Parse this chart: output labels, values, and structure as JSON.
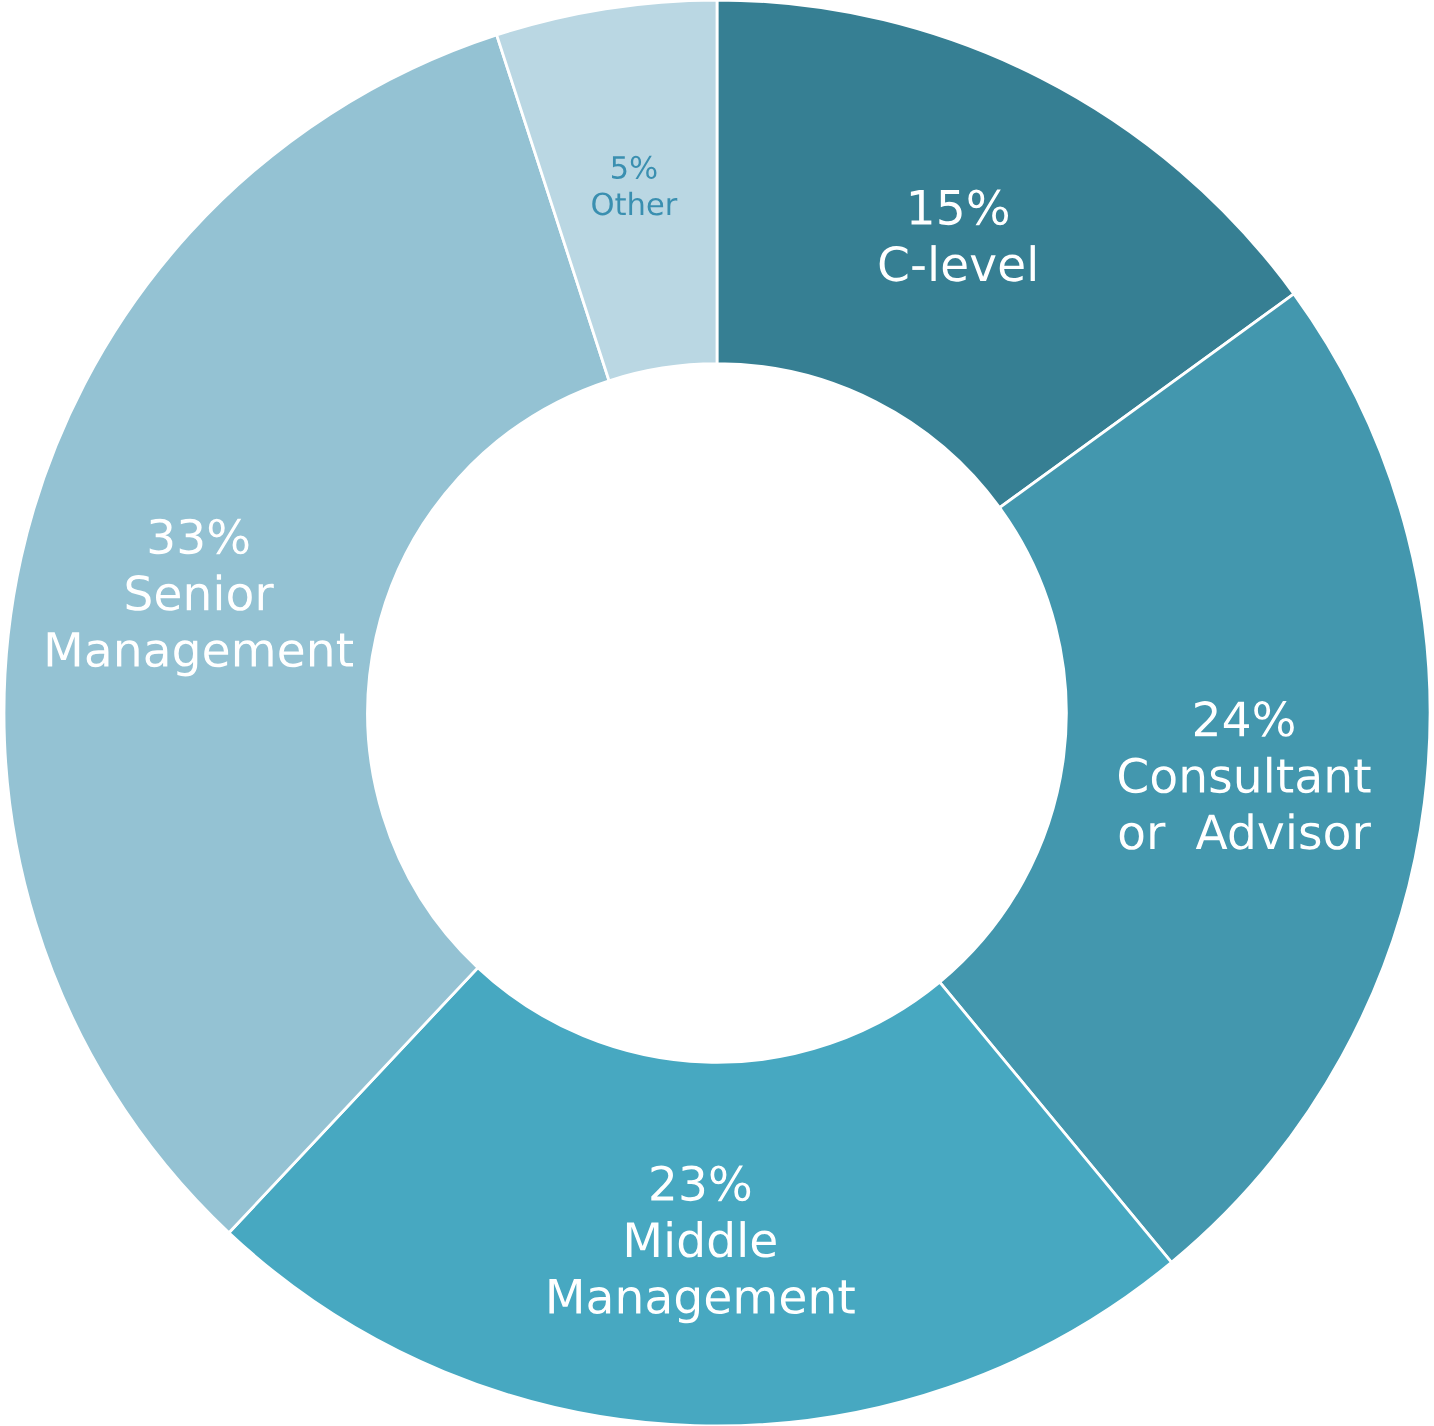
{
  "chart_data": {
    "type": "donut",
    "categories": [
      "C-level",
      "Consultant\nor  Advisor",
      "Middle\nManagement",
      "Senior\nManagement",
      "Other"
    ],
    "values": [
      15,
      24,
      23,
      33,
      5
    ],
    "colors": [
      "#367f93",
      "#4397ae",
      "#47a8c1",
      "#94c2d3",
      "#bad7e3"
    ],
    "value_labels": [
      "15%",
      "24%",
      "23%",
      "33%",
      "5%"
    ],
    "legend": false
  }
}
